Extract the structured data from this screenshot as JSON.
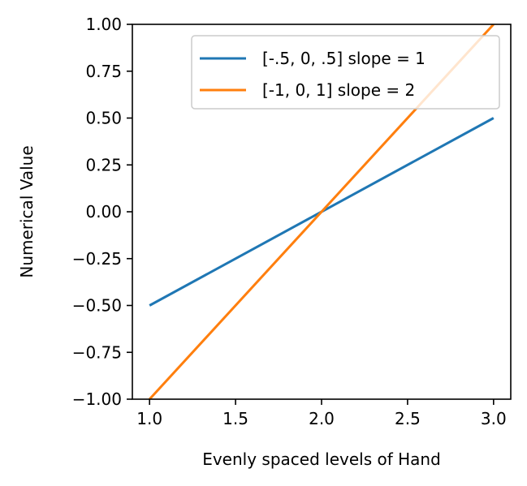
{
  "chart_data": {
    "type": "line",
    "title": "",
    "xlabel": "Evenly spaced levels of Hand",
    "ylabel": "Numerical Value",
    "xlim": [
      0.9,
      3.1
    ],
    "ylim": [
      -1.0,
      1.0
    ],
    "xticks": [
      1.0,
      1.5,
      2.0,
      2.5,
      3.0
    ],
    "xtick_labels": [
      "1.0",
      "1.5",
      "2.0",
      "2.5",
      "3.0"
    ],
    "yticks": [
      -1.0,
      -0.75,
      -0.5,
      -0.25,
      0.0,
      0.25,
      0.5,
      0.75,
      1.0
    ],
    "ytick_labels": [
      "−1.00",
      "−0.75",
      "−0.50",
      "−0.25",
      "0.00",
      "0.25",
      "0.50",
      "0.75",
      "1.00"
    ],
    "grid": false,
    "legend_position": "top-right",
    "series": [
      {
        "name": "[-.5, 0, .5] slope = 1",
        "color": "#1f77b4",
        "x": [
          1,
          2,
          3
        ],
        "y": [
          -0.5,
          0.0,
          0.5
        ]
      },
      {
        "name": "[-1, 0, 1] slope = 2",
        "color": "#ff7f0e",
        "x": [
          1,
          2,
          3
        ],
        "y": [
          -1.0,
          0.0,
          1.0
        ]
      }
    ]
  }
}
